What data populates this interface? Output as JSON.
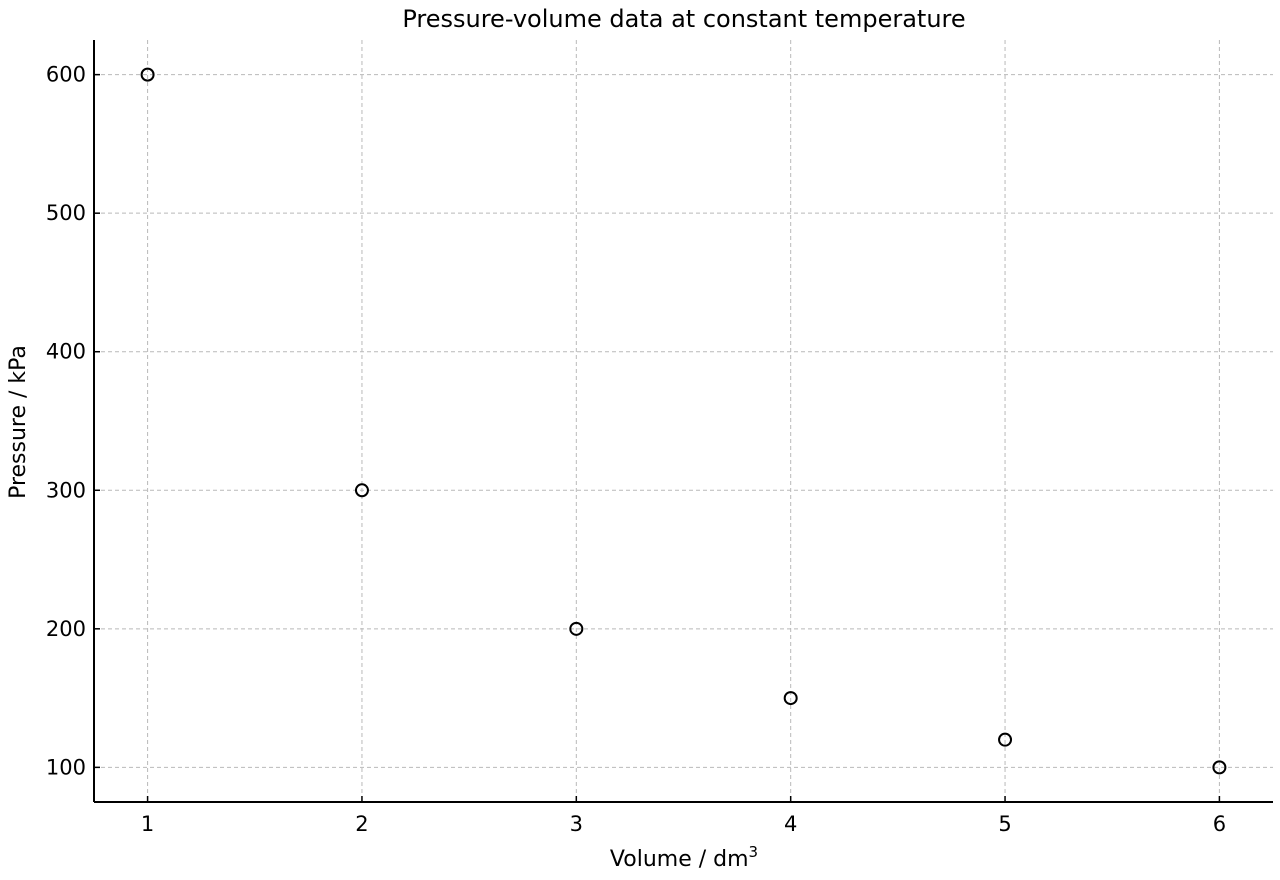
{
  "chart_data": {
    "type": "scatter",
    "title": "Pressure-volume data at constant temperature",
    "xlabel": "Volume / dm",
    "xlabel_superscript": "3",
    "ylabel": "Pressure / kPa",
    "xlim": [
      0.75,
      6.25
    ],
    "ylim": [
      75,
      625
    ],
    "xticks": [
      1,
      2,
      3,
      4,
      5,
      6
    ],
    "yticks": [
      100,
      200,
      300,
      400,
      500,
      600
    ],
    "grid": true,
    "legend": null,
    "marker": "open-circle",
    "colors": {
      "marker": "#000000",
      "grid": "#b9b9b9",
      "axis": "#000000"
    },
    "x": [
      1,
      2,
      3,
      4,
      5,
      6
    ],
    "y": [
      600,
      300,
      200,
      150,
      120,
      100
    ]
  }
}
